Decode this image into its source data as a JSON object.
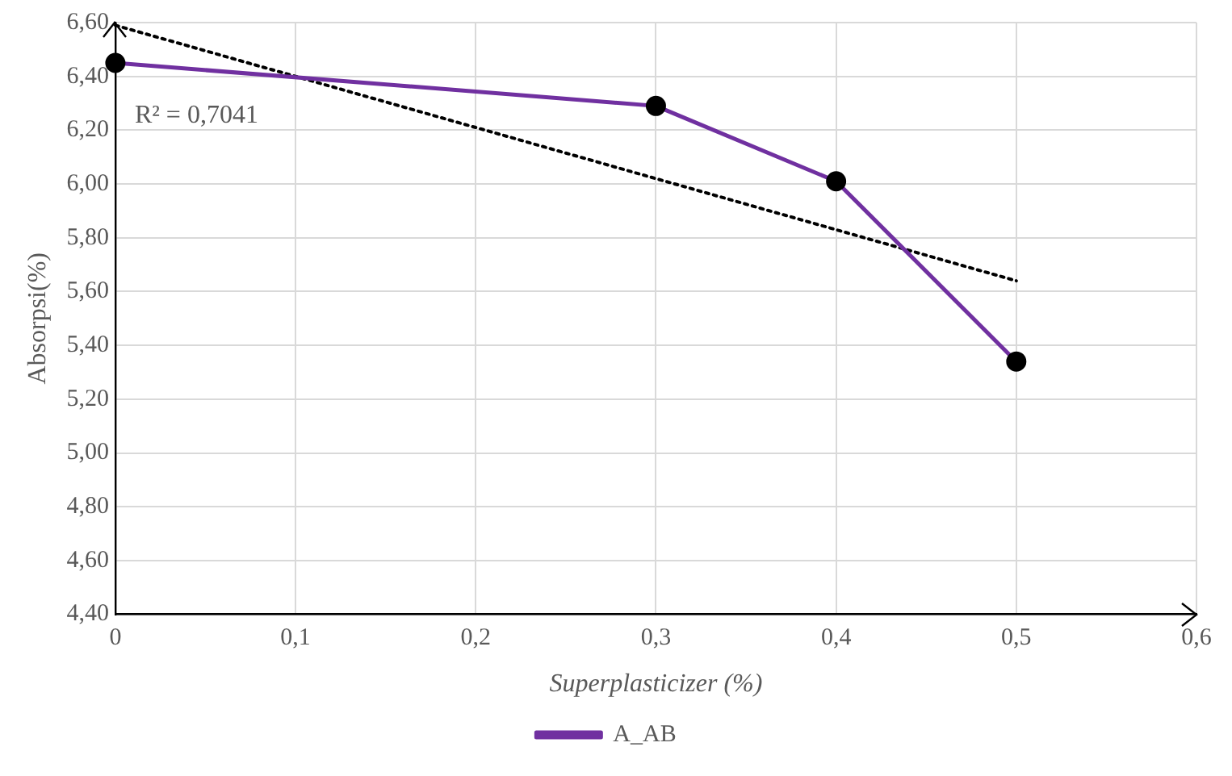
{
  "chart_data": {
    "type": "line",
    "xlabel": "Superplasticizer (%)",
    "ylabel": "Absorpsi(%)",
    "x": [
      0,
      0.3,
      0.4,
      0.5
    ],
    "series": [
      {
        "name": "A_AB",
        "color": "#7030a0",
        "values": [
          6.45,
          6.29,
          6.01,
          5.34
        ],
        "marker": "circle",
        "line_style": "solid"
      },
      {
        "type": "line",
        "x": [
          0,
          0.5
        ],
        "color": "#000000",
        "values": [
          6.59,
          5.64
        ],
        "marker": "none",
        "line_style": "dotted"
      }
    ],
    "xlim": [
      0,
      0.6
    ],
    "xticks": [
      0,
      {
        "value": 0.1,
        "label": "0,1"
      },
      {
        "value": 0.2,
        "label": "0,2"
      },
      {
        "value": 0.3,
        "label": "0,3"
      },
      {
        "value": 0.4,
        "label": "0,4"
      },
      {
        "value": 0.5,
        "label": "0,5"
      },
      {
        "value": 0.6,
        "label": "0,6"
      }
    ],
    "ylim": [
      4.4,
      6.6
    ],
    "yticks": [
      {
        "value": 4.4,
        "label": "4,40"
      },
      {
        "value": 4.6,
        "label": "4,60"
      },
      {
        "value": 4.8,
        "label": "4,80"
      },
      {
        "value": 5,
        "label": "5,00"
      },
      {
        "value": 5.2,
        "label": "5,20"
      },
      {
        "value": 5.4,
        "label": "5,40"
      },
      {
        "value": 5.6,
        "label": "5,60"
      },
      {
        "value": 5.8,
        "label": "5,80"
      },
      {
        "value": 6,
        "label": "6,00"
      },
      {
        "value": 6.2,
        "label": "6,20"
      },
      {
        "value": 6.4,
        "label": "6,40"
      },
      {
        "value": 6.6,
        "label": "6,60"
      }
    ],
    "grid": true,
    "legend": "bottom",
    "annotations": [
      "R² = 0,7041"
    ]
  }
}
